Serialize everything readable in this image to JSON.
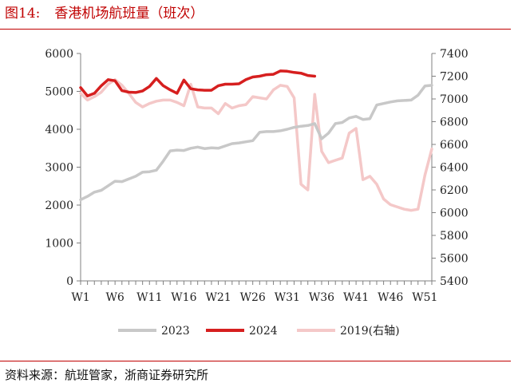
{
  "header": {
    "figure_number": "图14:",
    "title": "香港机场航班量（班次）"
  },
  "footer": {
    "source": "资料来源：航班管家，浙商证券研究所"
  },
  "colors": {
    "accent": "#c00000",
    "series_2023": "#c8c8c8",
    "series_2024": "#d61f1f",
    "series_2019": "#f4c8c8",
    "axis": "#808080"
  },
  "chart_data": {
    "type": "line",
    "title": "",
    "xlabel": "",
    "ylabel": "",
    "x_ticks": [
      "W1",
      "W6",
      "W11",
      "W16",
      "W21",
      "W26",
      "W31",
      "W36",
      "W41",
      "W46",
      "W51"
    ],
    "x_range": [
      1,
      52
    ],
    "y_left": {
      "range": [
        0,
        6000
      ],
      "ticks": [
        0,
        1000,
        2000,
        3000,
        4000,
        5000,
        6000
      ]
    },
    "y_right": {
      "range": [
        5400,
        7400
      ],
      "ticks": [
        5400,
        5600,
        5800,
        6000,
        6200,
        6400,
        6600,
        6800,
        7000,
        7200,
        7400
      ]
    },
    "grid": false,
    "legend_position": "bottom",
    "series": [
      {
        "name": "2023",
        "axis": "left",
        "x": [
          1,
          2,
          3,
          4,
          5,
          6,
          7,
          8,
          9,
          10,
          11,
          12,
          13,
          14,
          15,
          16,
          17,
          18,
          19,
          20,
          21,
          22,
          23,
          24,
          25,
          26,
          27,
          28,
          29,
          30,
          31,
          32,
          33,
          34,
          35,
          36,
          37,
          38,
          39,
          40,
          41,
          42,
          43,
          44,
          45,
          46,
          47,
          48,
          49,
          50,
          51,
          52
        ],
        "values": [
          2140,
          2230,
          2340,
          2390,
          2510,
          2630,
          2620,
          2690,
          2760,
          2870,
          2880,
          2920,
          3160,
          3430,
          3450,
          3440,
          3500,
          3530,
          3490,
          3510,
          3500,
          3560,
          3620,
          3640,
          3670,
          3700,
          3920,
          3940,
          3940,
          3960,
          4000,
          4050,
          4080,
          4100,
          4150,
          3750,
          3900,
          4150,
          4180,
          4300,
          4340,
          4260,
          4280,
          4640,
          4680,
          4720,
          4750,
          4760,
          4770,
          4900,
          5140,
          5160
        ]
      },
      {
        "name": "2024",
        "axis": "left",
        "x": [
          1,
          2,
          3,
          4,
          5,
          6,
          7,
          8,
          9,
          10,
          11,
          12,
          13,
          14,
          15,
          16,
          17,
          18,
          19,
          20,
          21,
          22,
          23,
          24,
          25,
          26,
          27,
          28,
          29,
          30,
          31,
          32,
          33,
          34,
          35
        ],
        "values": [
          5100,
          4880,
          4950,
          5150,
          5310,
          5280,
          5020,
          4980,
          4970,
          5010,
          5130,
          5340,
          5150,
          5040,
          4950,
          5300,
          5070,
          5040,
          5030,
          5030,
          5150,
          5190,
          5190,
          5200,
          5310,
          5380,
          5400,
          5440,
          5450,
          5540,
          5530,
          5500,
          5480,
          5420,
          5400
        ]
      },
      {
        "name": "2019(右轴)",
        "axis": "right",
        "x": [
          1,
          2,
          3,
          4,
          5,
          6,
          7,
          8,
          9,
          10,
          11,
          12,
          13,
          14,
          15,
          16,
          17,
          18,
          19,
          20,
          21,
          22,
          23,
          24,
          25,
          26,
          27,
          28,
          29,
          30,
          31,
          32,
          33,
          34,
          35,
          36,
          37,
          38,
          39,
          40,
          41,
          42,
          43,
          44,
          45,
          46,
          47,
          48,
          49,
          50,
          51,
          52
        ],
        "values": [
          7050,
          6990,
          7020,
          7060,
          7130,
          7170,
          7120,
          7050,
          6970,
          6930,
          6960,
          6980,
          6990,
          6990,
          6970,
          6940,
          7130,
          6930,
          6920,
          6920,
          6870,
          6960,
          6920,
          6940,
          6950,
          7020,
          7010,
          7000,
          7080,
          7120,
          7110,
          7010,
          6250,
          6200,
          7040,
          6540,
          6440,
          6460,
          6480,
          6700,
          6740,
          6290,
          6320,
          6250,
          6120,
          6070,
          6050,
          6030,
          6020,
          6030,
          6330,
          6560
        ]
      }
    ]
  }
}
